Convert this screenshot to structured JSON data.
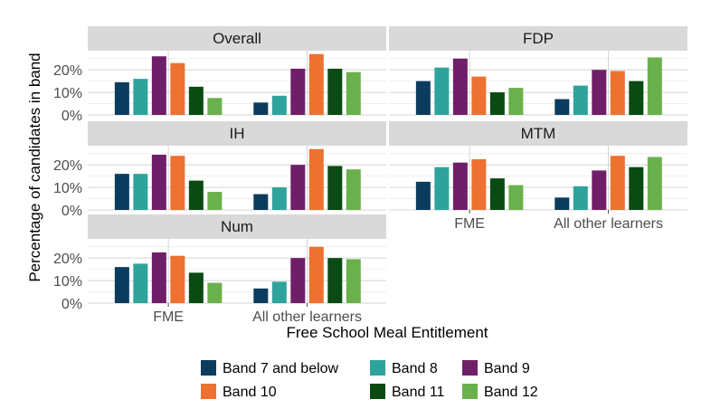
{
  "chart_data": {
    "type": "bar",
    "xlabel": "Free School Meal Entitlement",
    "ylabel": "Percentage of candidates in band",
    "categories": [
      "FME",
      "All other learners"
    ],
    "y_ticks": [
      "0%",
      "10%",
      "20%"
    ],
    "ylim": [
      0,
      0.285
    ],
    "series_names": [
      "Band 7 and below",
      "Band 8",
      "Band 9",
      "Band 10",
      "Band 11",
      "Band 12"
    ],
    "colors": [
      "#0b3c5d",
      "#2ea39b",
      "#6f1f67",
      "#ed7130",
      "#0b4a13",
      "#6ab04c"
    ],
    "legend_position": "bottom",
    "grid": true,
    "panels": [
      {
        "name": "Overall",
        "values": [
          [
            0.145,
            0.16,
            0.26,
            0.23,
            0.125,
            0.075
          ],
          [
            0.055,
            0.085,
            0.205,
            0.27,
            0.205,
            0.19
          ]
        ]
      },
      {
        "name": "FDP",
        "values": [
          [
            0.15,
            0.21,
            0.25,
            0.17,
            0.1,
            0.12
          ],
          [
            0.07,
            0.13,
            0.2,
            0.195,
            0.15,
            0.255
          ]
        ]
      },
      {
        "name": "IH",
        "values": [
          [
            0.16,
            0.16,
            0.245,
            0.24,
            0.13,
            0.08
          ],
          [
            0.07,
            0.1,
            0.2,
            0.27,
            0.195,
            0.18
          ]
        ]
      },
      {
        "name": "MTM",
        "values": [
          [
            0.125,
            0.19,
            0.21,
            0.225,
            0.14,
            0.11
          ],
          [
            0.055,
            0.105,
            0.175,
            0.24,
            0.19,
            0.235
          ]
        ]
      },
      {
        "name": "Num",
        "values": [
          [
            0.16,
            0.175,
            0.225,
            0.21,
            0.135,
            0.09
          ],
          [
            0.065,
            0.095,
            0.2,
            0.25,
            0.2,
            0.195
          ]
        ]
      }
    ]
  }
}
